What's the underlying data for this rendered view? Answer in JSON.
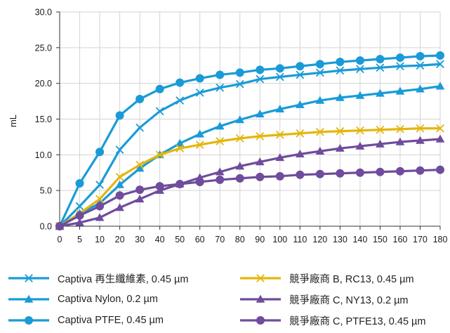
{
  "chart_data": {
    "type": "line",
    "title": "",
    "xlabel": "",
    "ylabel": "mL",
    "x": [
      0,
      5,
      10,
      20,
      30,
      40,
      50,
      60,
      70,
      80,
      90,
      100,
      110,
      120,
      130,
      140,
      150,
      160,
      170,
      180
    ],
    "xticks": [
      "0",
      "5",
      "10",
      "20",
      "30",
      "40",
      "50",
      "60",
      "70",
      "80",
      "90",
      "100",
      "110",
      "120",
      "130",
      "140",
      "150",
      "160",
      "170",
      "180"
    ],
    "yticks": [
      "0.0",
      "5.0",
      "10.0",
      "15.0",
      "20.0",
      "25.0",
      "30.0"
    ],
    "ylim": [
      0,
      30
    ],
    "grid": "vertical",
    "legend_position": "bottom",
    "series": [
      {
        "name": "Captiva 再生纖維素, 0.45 µm",
        "color": "#1a9bd7",
        "marker": "x",
        "values": [
          0,
          2.8,
          5.8,
          10.7,
          13.8,
          16.1,
          17.6,
          18.7,
          19.4,
          19.9,
          20.6,
          20.9,
          21.2,
          21.5,
          21.8,
          22.0,
          22.2,
          22.4,
          22.5,
          22.7
        ]
      },
      {
        "name": "Captiva Nylon, 0.2 µm",
        "color": "#1a9bd7",
        "marker": "triangle",
        "values": [
          0,
          1.8,
          3.2,
          5.8,
          8.1,
          10.0,
          11.6,
          12.9,
          14.0,
          14.9,
          15.7,
          16.4,
          17.0,
          17.6,
          18.0,
          18.3,
          18.6,
          18.9,
          19.2,
          19.6
        ]
      },
      {
        "name": "Captiva PTFE, 0.45 µm",
        "color": "#1a9bd7",
        "marker": "circle",
        "values": [
          0,
          6.0,
          10.4,
          15.5,
          17.8,
          19.2,
          20.1,
          20.7,
          21.2,
          21.5,
          21.9,
          22.1,
          22.4,
          22.7,
          23.0,
          23.2,
          23.4,
          23.6,
          23.8,
          23.9
        ]
      },
      {
        "name": "競爭廠商 B, RC13, 0.45 µm",
        "color": "#e3b60c",
        "marker": "x",
        "values": [
          0,
          1.8,
          3.8,
          6.9,
          8.6,
          10.0,
          10.9,
          11.4,
          11.9,
          12.3,
          12.6,
          12.8,
          13.0,
          13.2,
          13.3,
          13.4,
          13.5,
          13.6,
          13.7,
          13.7
        ]
      },
      {
        "name": "競爭廠商 C, NY13, 0.2 µm",
        "color": "#6f4c9c",
        "marker": "triangle",
        "values": [
          0,
          0.5,
          1.2,
          2.6,
          3.8,
          5.0,
          5.9,
          6.8,
          7.6,
          8.4,
          9.0,
          9.6,
          10.1,
          10.5,
          10.9,
          11.2,
          11.5,
          11.8,
          12.0,
          12.2
        ]
      },
      {
        "name": "競爭廠商 C, PTFE13, 0.45 µm",
        "color": "#6f4c9c",
        "marker": "circle",
        "values": [
          0,
          1.5,
          2.8,
          4.3,
          5.1,
          5.6,
          5.9,
          6.2,
          6.5,
          6.7,
          6.9,
          7.0,
          7.2,
          7.3,
          7.4,
          7.5,
          7.6,
          7.7,
          7.8,
          7.9
        ]
      }
    ]
  }
}
